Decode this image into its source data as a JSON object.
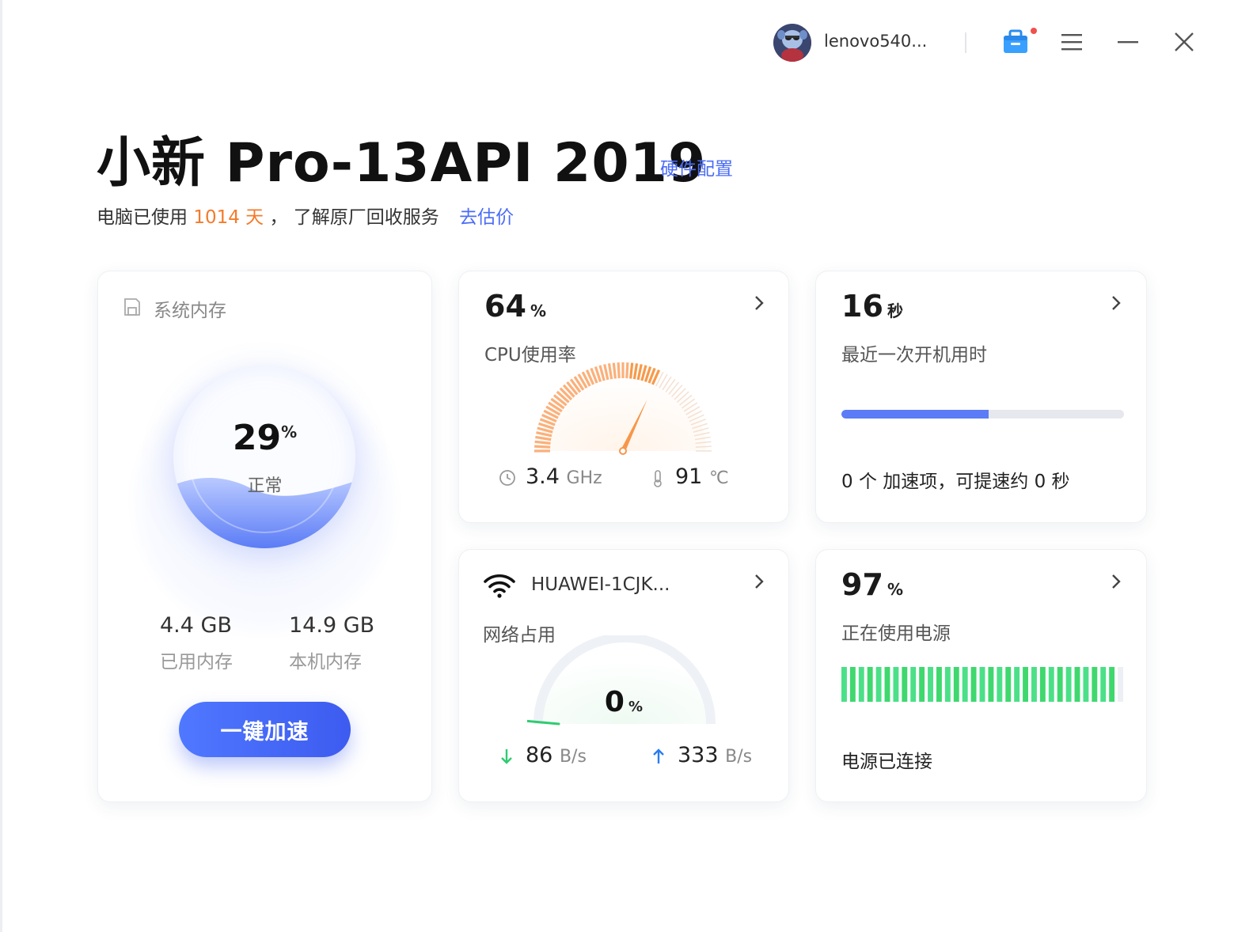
{
  "topbar": {
    "username": "lenovo540...",
    "icons": [
      "toolbox-icon",
      "menu-icon",
      "minimize-icon",
      "close-icon"
    ],
    "notification_dot_color": "#f0504c"
  },
  "header": {
    "device_title": "小新 Pro-13API 2019",
    "hardware_link": "硬件配置",
    "usage_prefix": "电脑已使用",
    "usage_days": "1014 天",
    "usage_suffix": "，  了解原厂回收服务",
    "evaluate_link": "去估价"
  },
  "memory": {
    "title": "系统内存",
    "percent": "29",
    "percent_unit": "%",
    "status": "正常",
    "used_value": "4.4 GB",
    "used_label": "已用内存",
    "total_value": "14.9 GB",
    "total_label": "本机内存",
    "boost_button": "一键加速"
  },
  "cpu": {
    "percent": "64",
    "unit": "%",
    "label": "CPU使用率",
    "frequency": "3.4",
    "frequency_unit": "GHz",
    "temperature": "91",
    "temperature_unit": "℃",
    "gauge_level": 0.64
  },
  "boot": {
    "value": "16",
    "unit": "秒",
    "label": "最近一次开机用时",
    "progress_fraction": 0.52,
    "tip": "0 个 加速项，可提速约 0 秒"
  },
  "network": {
    "ssid": "HUAWEI-1CJK...",
    "label": "网络占用",
    "percent": "0",
    "unit": "%",
    "download": "86",
    "download_unit": "B/s",
    "upload": "333",
    "upload_unit": "B/s"
  },
  "power": {
    "percent": "97",
    "unit": "%",
    "label": "正在使用电源",
    "status": "电源已连接",
    "battery_level": 0.97
  },
  "colors": {
    "accent_blue": "#4a6cf7",
    "orange": "#f37b2b",
    "battery_green": "#39d36b"
  }
}
